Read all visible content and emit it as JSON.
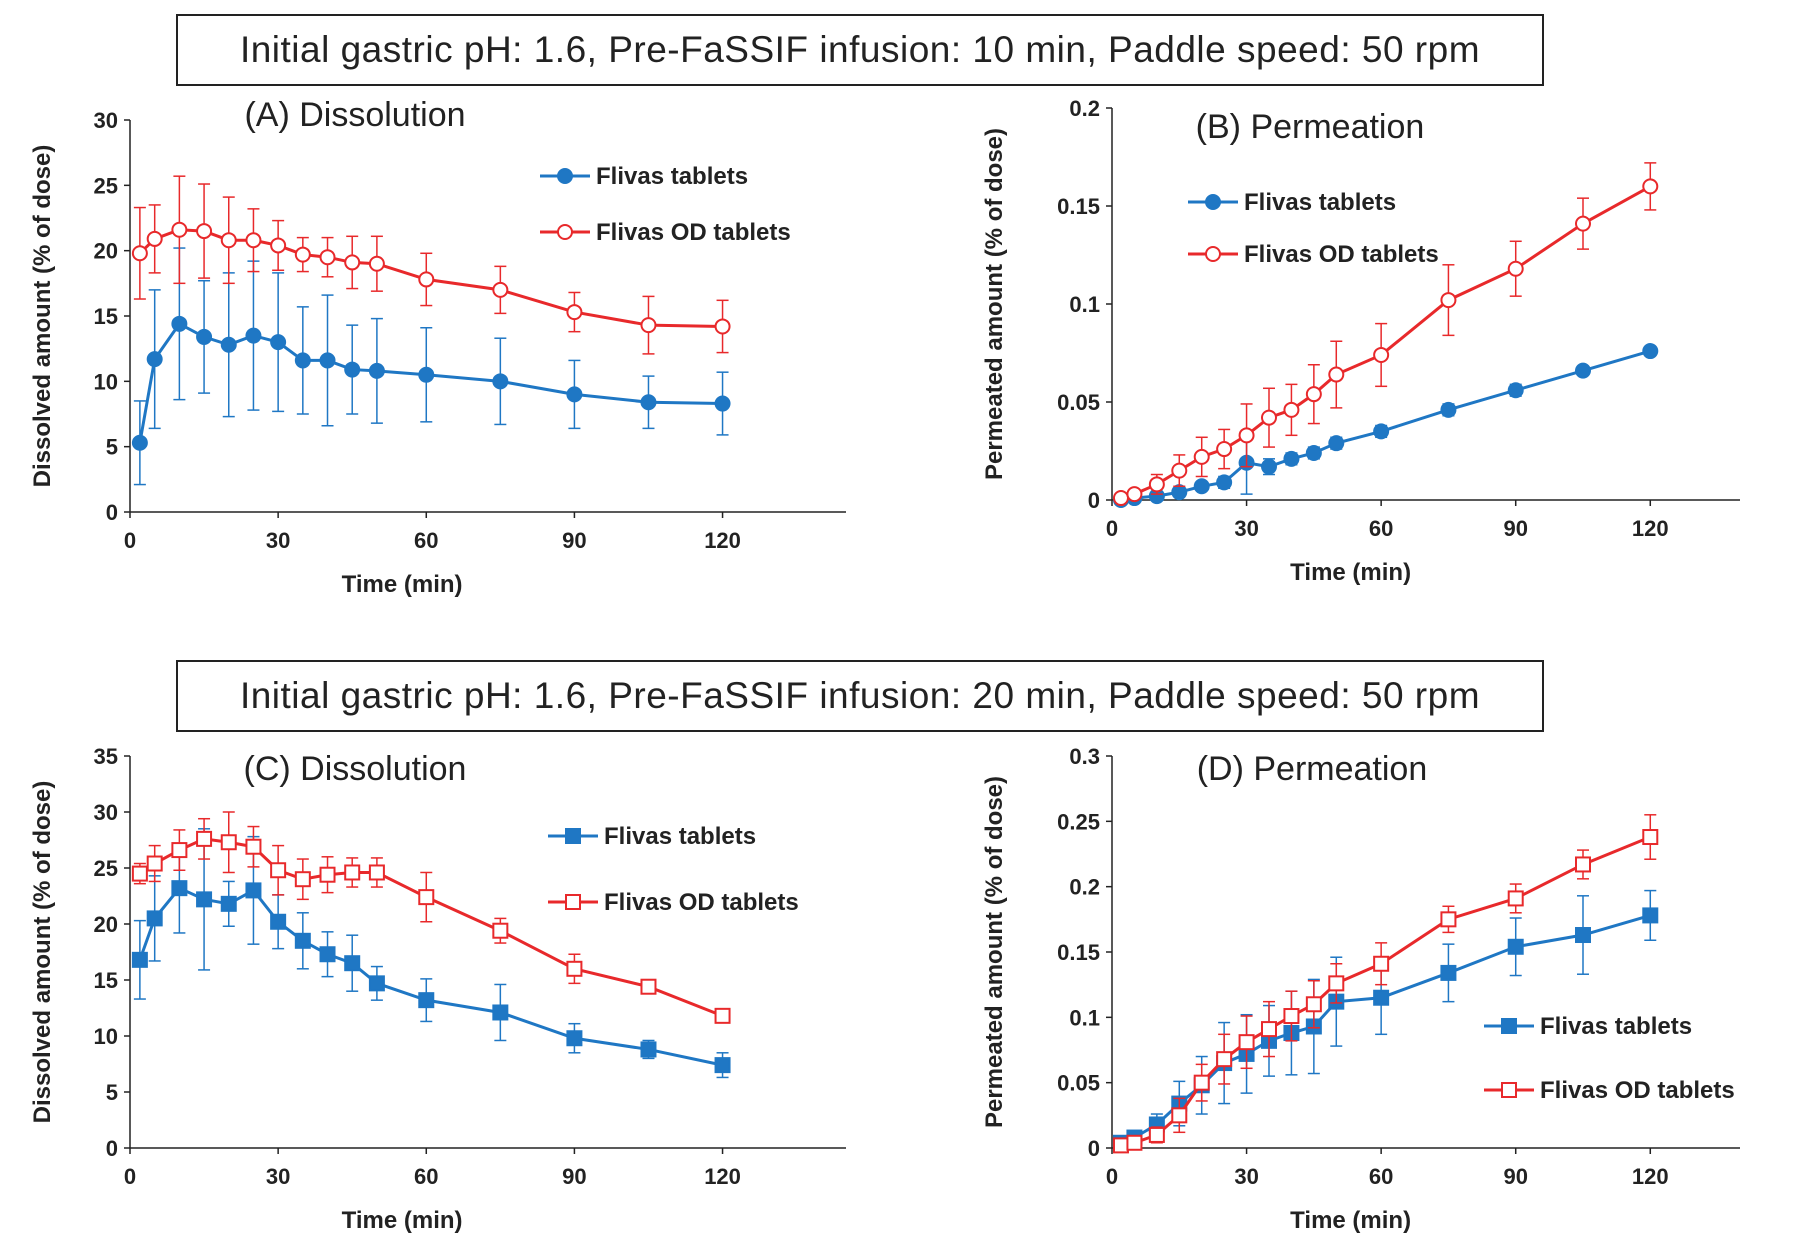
{
  "headers": {
    "top": "Initial gastric pH: 1.6,  Pre-FaSSIF infusion: 10 min,  Paddle speed: 50 rpm",
    "bottom": "Initial gastric pH: 1.6,  Pre-FaSSIF infusion: 20 min,  Paddle speed: 50 rpm"
  },
  "colors": {
    "blue": "#1f77c4",
    "red": "#e8292b",
    "axis": "#222222"
  },
  "chart_data": [
    {
      "id": "A",
      "type": "line",
      "title": "(A) Dissolution",
      "xlabel": "Time  (min)",
      "ylabel": "Dissolved amount (% of dose)",
      "xlim": [
        0,
        145
      ],
      "ylim": [
        0,
        30
      ],
      "xticks": [
        0,
        30,
        60,
        90,
        120
      ],
      "yticks": [
        0,
        5,
        10,
        15,
        20,
        25,
        30
      ],
      "ytick_labels": [
        "0",
        "5",
        "10",
        "15",
        "20",
        "25",
        "30"
      ],
      "legend_position": "upper-right",
      "series": [
        {
          "name": "Flivas tablets",
          "color": "#1f77c4",
          "marker": "circle",
          "fill": "solid",
          "x": [
            2,
            5,
            10,
            15,
            20,
            25,
            30,
            35,
            40,
            45,
            50,
            60,
            75,
            90,
            105,
            120
          ],
          "y": [
            5.3,
            11.7,
            14.4,
            13.4,
            12.8,
            13.5,
            13.0,
            11.6,
            11.6,
            10.9,
            10.8,
            10.5,
            10.0,
            9.0,
            8.4,
            8.3
          ],
          "err": [
            3.2,
            5.3,
            5.8,
            4.3,
            5.5,
            5.7,
            5.3,
            4.1,
            5.0,
            3.4,
            4.0,
            3.6,
            3.3,
            2.6,
            2.0,
            2.4
          ]
        },
        {
          "name": "Flivas OD tablets",
          "color": "#e8292b",
          "marker": "circle",
          "fill": "open",
          "x": [
            2,
            5,
            10,
            15,
            20,
            25,
            30,
            35,
            40,
            45,
            50,
            60,
            75,
            90,
            105,
            120
          ],
          "y": [
            19.8,
            20.9,
            21.6,
            21.5,
            20.8,
            20.8,
            20.4,
            19.7,
            19.5,
            19.1,
            19.0,
            17.8,
            17.0,
            15.3,
            14.3,
            14.2
          ],
          "err": [
            3.5,
            2.6,
            4.1,
            3.6,
            3.3,
            2.4,
            1.9,
            1.3,
            1.5,
            2.0,
            2.1,
            2.0,
            1.8,
            1.5,
            2.2,
            2.0
          ]
        }
      ]
    },
    {
      "id": "B",
      "type": "line",
      "title": "(B) Permeation",
      "xlabel": "Time  (min)",
      "ylabel": "Permeated amount (% of dose)",
      "xlim": [
        0,
        140
      ],
      "ylim": [
        0,
        0.2
      ],
      "xticks": [
        0,
        30,
        60,
        90,
        120
      ],
      "yticks": [
        0,
        0.05,
        0.1,
        0.15,
        0.2
      ],
      "ytick_labels": [
        "0",
        "0.05",
        "0.1",
        "0.15",
        "0.2"
      ],
      "legend_position": "upper-left",
      "series": [
        {
          "name": "Flivas tablets",
          "color": "#1f77c4",
          "marker": "circle",
          "fill": "solid",
          "x": [
            2,
            5,
            10,
            15,
            20,
            25,
            30,
            35,
            40,
            45,
            50,
            60,
            75,
            90,
            105,
            120
          ],
          "y": [
            0.0,
            0.001,
            0.002,
            0.004,
            0.007,
            0.009,
            0.019,
            0.017,
            0.021,
            0.024,
            0.029,
            0.035,
            0.046,
            0.056,
            0.066,
            0.076
          ],
          "err": [
            0,
            0,
            0.001,
            0.001,
            0.002,
            0.003,
            0.016,
            0.004,
            0.003,
            0.003,
            0.003,
            0.003,
            0.003,
            0.003,
            0.002,
            0.002
          ]
        },
        {
          "name": "Flivas OD tablets",
          "color": "#e8292b",
          "marker": "circle",
          "fill": "open",
          "x": [
            2,
            5,
            10,
            15,
            20,
            25,
            30,
            35,
            40,
            45,
            50,
            60,
            75,
            90,
            105,
            120
          ],
          "y": [
            0.001,
            0.003,
            0.008,
            0.015,
            0.022,
            0.026,
            0.033,
            0.042,
            0.046,
            0.054,
            0.064,
            0.074,
            0.102,
            0.118,
            0.141,
            0.16
          ],
          "err": [
            0.001,
            0.002,
            0.005,
            0.008,
            0.01,
            0.01,
            0.016,
            0.015,
            0.013,
            0.015,
            0.017,
            0.016,
            0.018,
            0.014,
            0.013,
            0.012
          ]
        }
      ]
    },
    {
      "id": "C",
      "type": "line",
      "title": "(C) Dissolution",
      "xlabel": "Time  (min)",
      "ylabel": "Dissolved amount (% of dose)",
      "xlim": [
        0,
        145
      ],
      "ylim": [
        0,
        35
      ],
      "xticks": [
        0,
        30,
        60,
        90,
        120
      ],
      "yticks": [
        0,
        5,
        10,
        15,
        20,
        25,
        30,
        35
      ],
      "ytick_labels": [
        "0",
        "5",
        "10",
        "15",
        "20",
        "25",
        "30",
        "35"
      ],
      "legend_position": "right",
      "series": [
        {
          "name": "Flivas tablets",
          "color": "#1f77c4",
          "marker": "square",
          "fill": "solid",
          "x": [
            2,
            5,
            10,
            15,
            20,
            25,
            30,
            35,
            40,
            45,
            50,
            60,
            75,
            90,
            105,
            120
          ],
          "y": [
            16.8,
            20.5,
            23.2,
            22.2,
            21.8,
            23.0,
            20.2,
            18.5,
            17.3,
            16.5,
            14.7,
            13.2,
            12.1,
            9.8,
            8.8,
            7.4
          ],
          "err": [
            3.5,
            3.8,
            4.0,
            6.3,
            2.0,
            4.8,
            2.4,
            2.5,
            2.0,
            2.5,
            1.5,
            1.9,
            2.5,
            1.3,
            0.8,
            1.1
          ]
        },
        {
          "name": "Flivas OD tablets",
          "color": "#e8292b",
          "marker": "square",
          "fill": "open",
          "x": [
            2,
            5,
            10,
            15,
            20,
            25,
            30,
            35,
            40,
            45,
            50,
            60,
            75,
            90,
            105,
            120
          ],
          "y": [
            24.5,
            25.4,
            26.6,
            27.6,
            27.3,
            26.9,
            24.8,
            24.0,
            24.4,
            24.6,
            24.6,
            22.4,
            19.4,
            16.0,
            14.4,
            11.8
          ],
          "err": [
            0.9,
            1.6,
            1.8,
            1.8,
            2.7,
            1.8,
            2.2,
            1.8,
            1.6,
            1.3,
            1.3,
            2.2,
            1.1,
            1.3,
            0.5,
            0.6
          ]
        }
      ]
    },
    {
      "id": "D",
      "type": "line",
      "title": "(D) Permeation",
      "xlabel": "Time  (min)",
      "ylabel": "Permeated amount (% of dose)",
      "xlim": [
        0,
        140
      ],
      "ylim": [
        0,
        0.3
      ],
      "xticks": [
        0,
        30,
        60,
        90,
        120
      ],
      "yticks": [
        0,
        0.05,
        0.1,
        0.15,
        0.2,
        0.25,
        0.3
      ],
      "ytick_labels": [
        "0",
        "0.05",
        "0.1",
        "0.15",
        "0.2",
        "0.25",
        "0.3"
      ],
      "legend_position": "lower-right",
      "series": [
        {
          "name": "Flivas tablets",
          "color": "#1f77c4",
          "marker": "square",
          "fill": "solid",
          "x": [
            2,
            5,
            10,
            15,
            20,
            25,
            30,
            35,
            40,
            45,
            50,
            60,
            75,
            90,
            105,
            120
          ],
          "y": [
            0.004,
            0.008,
            0.018,
            0.034,
            0.048,
            0.065,
            0.072,
            0.082,
            0.088,
            0.093,
            0.112,
            0.115,
            0.134,
            0.154,
            0.163,
            0.178
          ],
          "err": [
            0.002,
            0.004,
            0.008,
            0.017,
            0.022,
            0.031,
            0.03,
            0.027,
            0.032,
            0.036,
            0.034,
            0.028,
            0.022,
            0.022,
            0.03,
            0.019
          ]
        },
        {
          "name": "Flivas OD tablets",
          "color": "#e8292b",
          "marker": "square",
          "fill": "open",
          "x": [
            2,
            5,
            10,
            15,
            20,
            25,
            30,
            35,
            40,
            45,
            50,
            60,
            75,
            90,
            105,
            120
          ],
          "y": [
            0.002,
            0.004,
            0.01,
            0.025,
            0.05,
            0.068,
            0.081,
            0.091,
            0.101,
            0.11,
            0.126,
            0.141,
            0.175,
            0.191,
            0.217,
            0.238
          ],
          "err": [
            0.002,
            0.003,
            0.006,
            0.013,
            0.014,
            0.019,
            0.02,
            0.021,
            0.019,
            0.018,
            0.015,
            0.016,
            0.01,
            0.011,
            0.011,
            0.017
          ]
        }
      ]
    }
  ]
}
